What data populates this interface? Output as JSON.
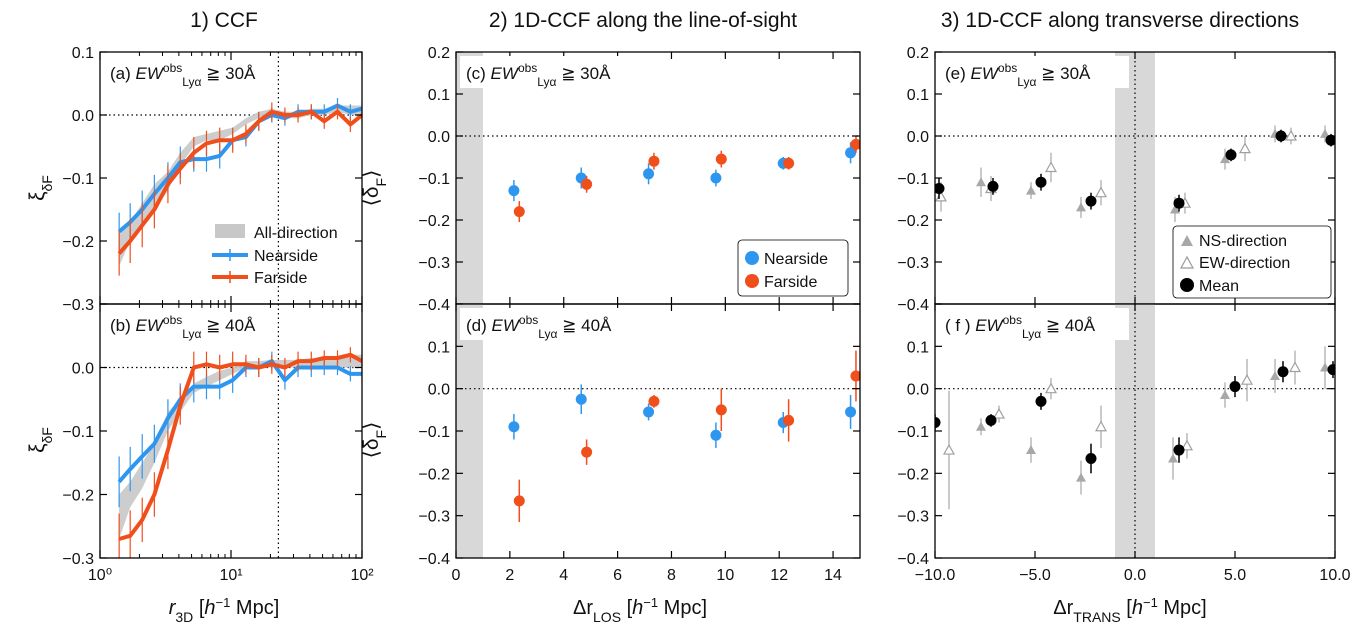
{
  "column_titles": [
    "1) CCF",
    "2) 1D-CCF along the line-of-sight",
    "3) 1D-CCF along transverse directions"
  ],
  "xlabels": {
    "col1": {
      "main": "r",
      "sub": "3D",
      "unit_pre": " [",
      "h": "h",
      "sup": "−1",
      "unit_post": " Mpc]"
    },
    "col2": {
      "main": "Δr",
      "sub": "LOS",
      "unit_pre": " [",
      "h": "h",
      "sup": "−1",
      "unit_post": " Mpc]"
    },
    "col3": {
      "main": "Δr",
      "sub": "TRANS",
      "unit_pre": " [",
      "h": "h",
      "sup": "−1",
      "unit_post": " Mpc]"
    }
  },
  "ylabels": {
    "col1": {
      "main": "ξ",
      "sub": "δF"
    },
    "col2": {
      "main": "⟨δ",
      "sub": "F",
      "post": "⟩"
    }
  },
  "panel_labels": {
    "a": {
      "pre": "(a) ",
      "ew": "EW",
      "sub": "Lyα",
      "sup": "obs",
      "post": " ≧ 30Å"
    },
    "b": {
      "pre": "(b) ",
      "ew": "EW",
      "sub": "Lyα",
      "sup": "obs",
      "post": " ≧ 40Å"
    },
    "c": {
      "pre": "(c) ",
      "ew": "EW",
      "sub": "Lyα",
      "sup": "obs",
      "post": " ≧ 30Å"
    },
    "d": {
      "pre": "(d) ",
      "ew": "EW",
      "sub": "Lyα",
      "sup": "obs",
      "post": " ≧ 40Å"
    },
    "e": {
      "pre": "(e) ",
      "ew": "EW",
      "sub": "Lyα",
      "sup": "obs",
      "post": " ≧ 30Å"
    },
    "f": {
      "pre": "( f ) ",
      "ew": "EW",
      "sub": "Lyα",
      "sup": "obs",
      "post": " ≧ 40Å"
    }
  },
  "legends": {
    "col1": [
      "All-direction",
      "Nearside",
      "Farside"
    ],
    "col2": [
      "Nearside",
      "Farside"
    ],
    "col3": [
      "NS-direction",
      "EW-direction",
      "Mean"
    ]
  },
  "colors": {
    "nearside": "#2f96f0",
    "farside": "#f04e1a",
    "band": "#c8c8c8",
    "ns": "#a8a8a8",
    "mean": "#000000"
  },
  "chart_data": [
    {
      "id": "a",
      "type": "line",
      "xscale": "log",
      "xlim": [
        1,
        100
      ],
      "ylim": [
        -0.3,
        0.1
      ],
      "xticklabels": [
        "10⁰",
        "10¹",
        "10²"
      ],
      "yticklabels": [
        "0.1",
        "0.0",
        "−0.1",
        "−0.2",
        "−0.3"
      ],
      "vline": 23,
      "hline": 0.0,
      "band": {
        "x": [
          1.4,
          1.7,
          2.1,
          2.6,
          3.3,
          4.1,
          5.2,
          6.5,
          8.2,
          10.3,
          13,
          16.3,
          20.5,
          25.8,
          32.5,
          41,
          51.5,
          65,
          81.5,
          100
        ],
        "lo": [
          -0.24,
          -0.2,
          -0.18,
          -0.15,
          -0.12,
          -0.08,
          -0.05,
          -0.04,
          -0.04,
          -0.03,
          -0.015,
          -0.005,
          0.0,
          -0.005,
          -0.005,
          0.0,
          0.0,
          0.005,
          0.0,
          0.0
        ],
        "hi": [
          -0.19,
          -0.17,
          -0.14,
          -0.11,
          -0.09,
          -0.06,
          -0.035,
          -0.03,
          -0.025,
          -0.02,
          -0.005,
          0.005,
          0.01,
          0.005,
          0.005,
          0.01,
          0.01,
          0.015,
          0.015,
          0.015
        ]
      },
      "series": [
        {
          "name": "Nearside",
          "x": [
            1.4,
            1.7,
            2.1,
            2.6,
            3.3,
            4.1,
            5.2,
            6.5,
            8.2,
            10.3,
            13,
            16.3,
            20.5,
            25.8,
            32.5,
            41,
            51.5,
            65,
            81.5,
            100
          ],
          "y": [
            -0.185,
            -0.17,
            -0.15,
            -0.125,
            -0.1,
            -0.075,
            -0.07,
            -0.07,
            -0.065,
            -0.04,
            -0.035,
            -0.01,
            0.0,
            -0.005,
            0.005,
            0.005,
            0.005,
            0.015,
            0.005,
            0.01
          ],
          "err": [
            0.03,
            0.03,
            0.03,
            0.03,
            0.025,
            0.025,
            0.02,
            0.02,
            0.02,
            0.015,
            0.015,
            0.015,
            0.012,
            0.012,
            0.012,
            0.012,
            0.012,
            0.012,
            0.012,
            0.012
          ]
        },
        {
          "name": "Farside",
          "x": [
            1.4,
            1.7,
            2.1,
            2.6,
            3.3,
            4.1,
            5.2,
            6.5,
            8.2,
            10.3,
            13,
            16.3,
            20.5,
            25.8,
            32.5,
            41,
            51.5,
            65,
            81.5,
            100
          ],
          "y": [
            -0.22,
            -0.2,
            -0.175,
            -0.15,
            -0.11,
            -0.085,
            -0.06,
            -0.045,
            -0.04,
            -0.04,
            -0.03,
            -0.01,
            0.005,
            0.0,
            0.0,
            0.005,
            -0.01,
            0.005,
            -0.015,
            0.0
          ],
          "err": [
            0.035,
            0.035,
            0.035,
            0.03,
            0.03,
            0.025,
            0.025,
            0.02,
            0.02,
            0.02,
            0.015,
            0.015,
            0.015,
            0.012,
            0.012,
            0.012,
            0.012,
            0.012,
            0.012,
            0.012
          ]
        }
      ]
    },
    {
      "id": "b",
      "type": "line",
      "xscale": "log",
      "xlim": [
        1,
        100
      ],
      "ylim": [
        -0.3,
        0.1
      ],
      "xticklabels": [
        "10⁰",
        "10¹",
        "10²"
      ],
      "yticklabels": [
        "0.1",
        "0.0",
        "−0.1",
        "−0.2",
        "−0.3"
      ],
      "vline": 23,
      "hline": 0.0,
      "band": {
        "x": [
          1.4,
          1.7,
          2.1,
          2.6,
          3.3,
          4.1,
          5.2,
          6.5,
          8.2,
          10.3,
          13,
          16.3,
          20.5,
          25.8,
          32.5,
          41,
          51.5,
          65,
          81.5,
          100
        ],
        "lo": [
          -0.27,
          -0.22,
          -0.19,
          -0.15,
          -0.1,
          -0.07,
          -0.04,
          -0.03,
          -0.02,
          -0.01,
          0.0,
          0.0,
          0.0,
          0.0,
          0.0,
          0.0,
          0.0,
          0.0,
          0.0,
          0.0
        ],
        "hi": [
          -0.2,
          -0.18,
          -0.15,
          -0.12,
          -0.07,
          -0.05,
          -0.025,
          -0.015,
          -0.005,
          0.0,
          0.01,
          0.01,
          0.012,
          0.012,
          0.012,
          0.015,
          0.015,
          0.015,
          0.02,
          0.02
        ]
      },
      "series": [
        {
          "name": "Nearside",
          "x": [
            1.4,
            1.7,
            2.1,
            2.6,
            3.3,
            4.1,
            5.2,
            6.5,
            8.2,
            10.3,
            13,
            16.3,
            20.5,
            25.8,
            32.5,
            41,
            51.5,
            65,
            81.5,
            100
          ],
          "y": [
            -0.18,
            -0.16,
            -0.14,
            -0.12,
            -0.08,
            -0.05,
            -0.03,
            -0.03,
            -0.03,
            -0.02,
            0.0,
            0.0,
            0.01,
            -0.02,
            0.0,
            0.0,
            0.0,
            0.0,
            -0.01,
            -0.01
          ],
          "err": [
            0.04,
            0.035,
            0.035,
            0.03,
            0.03,
            0.025,
            0.025,
            0.02,
            0.02,
            0.02,
            0.015,
            0.015,
            0.015,
            0.015,
            0.015,
            0.015,
            0.012,
            0.012,
            0.012,
            0.012
          ]
        },
        {
          "name": "Farside",
          "x": [
            1.4,
            1.7,
            2.1,
            2.6,
            3.3,
            4.1,
            5.2,
            6.5,
            8.2,
            10.3,
            13,
            16.3,
            20.5,
            25.8,
            32.5,
            41,
            51.5,
            65,
            81.5,
            100
          ],
          "y": [
            -0.27,
            -0.265,
            -0.24,
            -0.2,
            -0.13,
            -0.06,
            0.0,
            0.005,
            0.0,
            0.005,
            0.005,
            0.0,
            0.005,
            0.0,
            0.01,
            0.01,
            0.015,
            0.015,
            0.02,
            0.01
          ],
          "err": [
            0.04,
            0.04,
            0.035,
            0.035,
            0.03,
            0.03,
            0.025,
            0.02,
            0.02,
            0.02,
            0.015,
            0.015,
            0.015,
            0.015,
            0.015,
            0.015,
            0.012,
            0.012,
            0.012,
            0.012
          ]
        }
      ]
    },
    {
      "id": "c",
      "type": "scatter",
      "xlim": [
        0,
        15
      ],
      "ylim": [
        -0.4,
        0.2
      ],
      "shade": [
        0,
        1
      ],
      "xticklabels": [
        "0",
        "2",
        "4",
        "6",
        "8",
        "10",
        "12",
        "14"
      ],
      "yticklabels": [
        "0.2",
        "0.1",
        "0.0",
        "−0.1",
        "−0.2",
        "−0.3",
        "−0.4"
      ],
      "hline": 0.0,
      "series": [
        {
          "name": "Nearside",
          "x": [
            2.15,
            4.65,
            7.15,
            9.65,
            12.15,
            14.65
          ],
          "y": [
            -0.13,
            -0.1,
            -0.09,
            -0.1,
            -0.065,
            -0.04
          ],
          "err": [
            0.025,
            0.025,
            0.025,
            0.02,
            0.015,
            0.025
          ]
        },
        {
          "name": "Farside",
          "x": [
            2.35,
            4.85,
            7.35,
            9.85,
            12.35,
            14.85
          ],
          "y": [
            -0.18,
            -0.115,
            -0.06,
            -0.055,
            -0.065,
            -0.02
          ],
          "err": [
            0.025,
            0.02,
            0.02,
            0.02,
            0.015,
            0.02
          ]
        }
      ]
    },
    {
      "id": "d",
      "type": "scatter",
      "xlim": [
        0,
        15
      ],
      "ylim": [
        -0.4,
        0.2
      ],
      "shade": [
        0,
        1
      ],
      "xticklabels": [
        "0",
        "2",
        "4",
        "6",
        "8",
        "10",
        "12",
        "14"
      ],
      "yticklabels": [
        "0.2",
        "0.1",
        "0.0",
        "−0.1",
        "−0.2",
        "−0.3",
        "−0.4"
      ],
      "hline": 0.0,
      "series": [
        {
          "name": "Nearside",
          "x": [
            2.15,
            4.65,
            7.15,
            9.65,
            12.15,
            14.65
          ],
          "y": [
            -0.09,
            -0.025,
            -0.055,
            -0.11,
            -0.08,
            -0.055
          ],
          "err": [
            0.03,
            0.035,
            0.02,
            0.03,
            0.025,
            0.04
          ]
        },
        {
          "name": "Farside",
          "x": [
            2.35,
            4.85,
            7.35,
            9.85,
            12.35,
            14.85
          ],
          "y": [
            -0.265,
            -0.15,
            -0.03,
            -0.05,
            -0.075,
            0.03
          ],
          "err": [
            0.05,
            0.03,
            0.015,
            0.05,
            0.05,
            0.06
          ]
        }
      ]
    },
    {
      "id": "e",
      "type": "scatter",
      "xlim": [
        -10,
        10
      ],
      "ylim": [
        -0.4,
        0.2
      ],
      "shade": [
        -1,
        1
      ],
      "xticklabels": [
        "−10.0",
        "−5.0",
        "0.0",
        "5.0",
        "10.0"
      ],
      "yticklabels": [
        "0.2",
        "0.1",
        "0.0",
        "−0.1",
        "−0.2",
        "−0.3",
        "−0.4"
      ],
      "hline": 0.0,
      "vline": 0.0,
      "series": [
        {
          "name": "NS-direction",
          "x": [
            -10.2,
            -7.7,
            -5.2,
            -2.7,
            2.0,
            4.5,
            7.0,
            9.5
          ],
          "y": [
            -0.115,
            -0.11,
            -0.13,
            -0.17,
            -0.175,
            -0.055,
            0.005,
            0.005
          ],
          "err": [
            0.03,
            0.035,
            0.02,
            0.025,
            0.03,
            0.025,
            0.02,
            0.02
          ]
        },
        {
          "name": "EW-direction",
          "x": [
            -9.7,
            -7.2,
            -4.2,
            -1.7,
            2.5,
            5.5,
            7.8,
            10.3
          ],
          "y": [
            -0.145,
            -0.125,
            -0.075,
            -0.135,
            -0.16,
            -0.03,
            0.0,
            -0.01
          ],
          "err": [
            0.035,
            0.03,
            0.035,
            0.03,
            0.025,
            0.03,
            0.02,
            0.02
          ]
        },
        {
          "name": "Mean",
          "x": [
            -9.8,
            -7.1,
            -4.7,
            -2.2,
            2.2,
            4.8,
            7.3,
            9.8
          ],
          "y": [
            -0.125,
            -0.12,
            -0.11,
            -0.155,
            -0.16,
            -0.045,
            0.0,
            -0.01
          ],
          "err": [
            0.025,
            0.02,
            0.02,
            0.02,
            0.02,
            0.015,
            0.015,
            0.015
          ]
        }
      ]
    },
    {
      "id": "f",
      "type": "scatter",
      "xlim": [
        -10,
        10
      ],
      "ylim": [
        -0.4,
        0.2
      ],
      "shade": [
        -1,
        1
      ],
      "xticklabels": [
        "−10.0",
        "−5.0",
        "0.0",
        "5.0",
        "10.0"
      ],
      "yticklabels": [
        "0.2",
        "0.1",
        "0.0",
        "−0.1",
        "−0.2",
        "−0.3",
        "−0.4"
      ],
      "hline": 0.0,
      "vline": 0.0,
      "series": [
        {
          "name": "NS-direction",
          "x": [
            -7.7,
            -5.2,
            -2.7,
            1.9,
            4.5,
            7.0,
            9.5
          ],
          "y": [
            -0.09,
            -0.145,
            -0.21,
            -0.165,
            -0.015,
            0.03,
            0.05
          ],
          "err": [
            0.02,
            0.03,
            0.04,
            0.05,
            0.03,
            0.04,
            0.05
          ]
        },
        {
          "name": "EW-direction",
          "x": [
            -9.3,
            -6.8,
            -4.2,
            -1.7,
            2.6,
            5.6,
            8.0,
            10.5
          ],
          "y": [
            -0.145,
            -0.06,
            0.0,
            -0.09,
            -0.135,
            0.02,
            0.05,
            0.05
          ],
          "err": [
            0.14,
            0.02,
            0.025,
            0.05,
            0.03,
            0.05,
            0.04,
            0.05
          ]
        },
        {
          "name": "Mean",
          "x": [
            -10.0,
            -7.2,
            -4.7,
            -2.2,
            2.2,
            5.0,
            7.4,
            9.9
          ],
          "y": [
            -0.08,
            -0.075,
            -0.03,
            -0.165,
            -0.145,
            0.005,
            0.04,
            0.045
          ],
          "err": [
            0.02,
            0.015,
            0.02,
            0.035,
            0.03,
            0.025,
            0.025,
            0.02
          ]
        }
      ]
    }
  ]
}
